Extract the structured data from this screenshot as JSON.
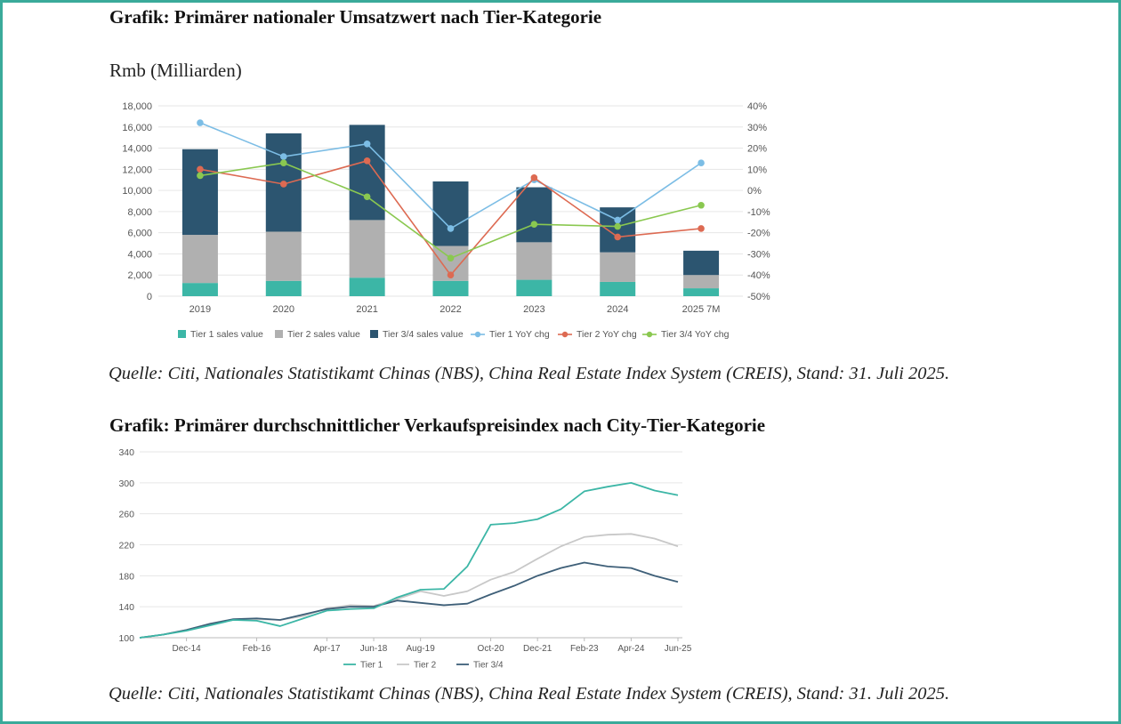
{
  "colors": {
    "frame": "#3aaa9a",
    "tier1_bar": "#3cb6a6",
    "tier2_bar": "#b0b0b0",
    "tier34_bar": "#2c5570",
    "tier1_yoy": "#7cbde5",
    "tier2_yoy": "#dd6a52",
    "tier34_yoy": "#8ac850",
    "line_tier1": "#3cb6a6",
    "line_tier2": "#c8c8c8",
    "line_tier34": "#3e5f78",
    "grid": "#e6e6e6"
  },
  "chart1_title": "Grafik: Primärer nationaler Umsatzwert nach Tier-Kategorie",
  "chart1_unit": "Rmb (Milliarden)",
  "chart1_source": "Quelle: Citi, Nationales Statistikamt Chinas (NBS), China Real Estate Index System (CREIS), Stand: 31. Juli 2025.",
  "chart2_title": "Grafik: Primärer durchschnittlicher Verkaufspreisindex nach City-Tier-Kategorie",
  "chart2_source": "Quelle: Citi, Nationales Statistikamt Chinas (NBS), China Real Estate Index System (CREIS), Stand: 31. Juli 2025.",
  "chart_data": [
    {
      "type": "bar",
      "stacked": true,
      "categories": [
        "2019",
        "2020",
        "2021",
        "2022",
        "2023",
        "2024",
        "2025 7M"
      ],
      "ylim": [
        0,
        18000
      ],
      "yticks": [
        0,
        2000,
        4000,
        6000,
        8000,
        10000,
        12000,
        14000,
        16000,
        18000
      ],
      "ytick_labels": [
        "0",
        "2,000",
        "4,000",
        "6,000",
        "8,000",
        "10,000",
        "12,000",
        "14,000",
        "16,000",
        "18,000"
      ],
      "y2lim": [
        -50,
        40
      ],
      "y2ticks": [
        -50,
        -40,
        -30,
        -20,
        -10,
        0,
        10,
        20,
        30,
        40
      ],
      "y2tick_labels": [
        "-50%",
        "-40%",
        "-30%",
        "-20%",
        "-10%",
        "0%",
        "10%",
        "20%",
        "30%",
        "40%"
      ],
      "series": [
        {
          "name": "Tier 1 sales value",
          "values": [
            1250,
            1450,
            1750,
            1450,
            1550,
            1350,
            750
          ]
        },
        {
          "name": "Tier 2 sales value",
          "values": [
            4550,
            4650,
            5450,
            3300,
            3550,
            2800,
            1250
          ]
        },
        {
          "name": "Tier 3/4 sales value",
          "values": [
            8100,
            9300,
            9000,
            6100,
            5200,
            4250,
            2300
          ]
        }
      ],
      "line_series": [
        {
          "name": "Tier 1 YoY chg",
          "values": [
            32,
            16,
            22,
            -18,
            5,
            -14,
            13
          ]
        },
        {
          "name": "Tier 2 YoY chg",
          "values": [
            10,
            3,
            14,
            -40,
            6,
            -22,
            -18
          ]
        },
        {
          "name": "Tier 3/4 YoY chg",
          "values": [
            7,
            13,
            -3,
            -32,
            -16,
            -17,
            -7
          ]
        }
      ]
    },
    {
      "type": "line",
      "x": [
        "Jan-14",
        "Jul-14",
        "Dec-14",
        "Jun-15",
        "Dec-15",
        "Feb-16",
        "Jun-16",
        "Dec-16",
        "Apr-17",
        "Dec-17",
        "Jun-18",
        "Dec-18",
        "Aug-19",
        "Dec-19",
        "Jun-20",
        "Oct-20",
        "Jun-21",
        "Dec-21",
        "Jun-22",
        "Feb-23",
        "Oct-23",
        "Apr-24",
        "Oct-24",
        "Jun-25"
      ],
      "xtick_labels": [
        "Dec-14",
        "Feb-16",
        "Apr-17",
        "Jun-18",
        "Aug-19",
        "Oct-20",
        "Dec-21",
        "Feb-23",
        "Apr-24",
        "Jun-25"
      ],
      "ylim": [
        100,
        340
      ],
      "yticks": [
        100,
        140,
        180,
        220,
        260,
        300,
        340
      ],
      "ytick_labels": [
        "100",
        "140",
        "180",
        "220",
        "260",
        "300",
        "340"
      ],
      "series": [
        {
          "name": "Tier 1",
          "values": [
            100,
            104,
            109,
            116,
            123,
            122,
            115,
            125,
            135,
            137,
            138,
            152,
            162,
            163,
            192,
            246,
            248,
            253,
            266,
            289,
            295,
            300,
            290,
            284
          ]
        },
        {
          "name": "Tier 2",
          "values": [
            100,
            104,
            110,
            118,
            123,
            124,
            123,
            128,
            138,
            142,
            141,
            150,
            160,
            154,
            160,
            175,
            185,
            202,
            218,
            230,
            233,
            234,
            228,
            218
          ]
        },
        {
          "name": "Tier 3/4",
          "values": [
            100,
            104,
            110,
            118,
            124,
            125,
            123,
            130,
            137,
            140,
            140,
            148,
            145,
            142,
            144,
            156,
            167,
            180,
            190,
            197,
            192,
            190,
            180,
            172
          ]
        }
      ]
    }
  ]
}
